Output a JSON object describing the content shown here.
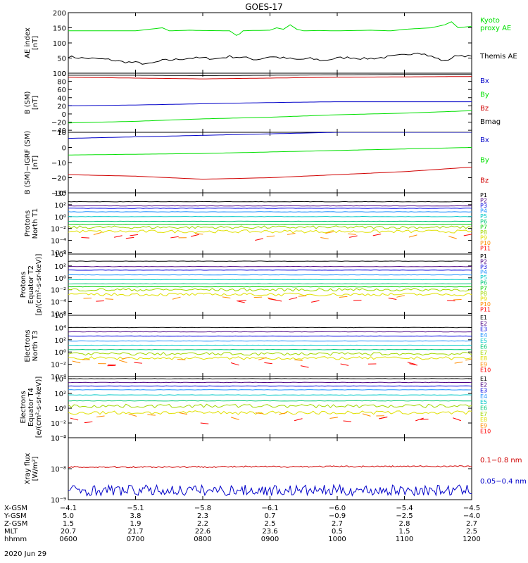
{
  "title": "GOES-17",
  "date_label": "2020 Jun 29",
  "colors": {
    "black": "#000000",
    "green": "#00e000",
    "red": "#d00000",
    "blue": "#0000c8",
    "p_colors": [
      "#000000",
      "#4b0082",
      "#0000e0",
      "#1e90ff",
      "#00c8c8",
      "#00c878",
      "#00d000",
      "#a0d800",
      "#e0e000",
      "#ff8c00",
      "#ff0000"
    ],
    "e_colors": [
      "#000000",
      "#4b0082",
      "#0000e0",
      "#1e90ff",
      "#00c8c8",
      "#00c878",
      "#a0d800",
      "#e0e000",
      "#ff8c00",
      "#ff0000"
    ]
  },
  "chart_data": [
    {
      "type": "line",
      "id": "ae",
      "ylabel": "AE index\n[nT]",
      "ylim": [
        0,
        200
      ],
      "yticks": [
        {
          "v": 0,
          "t": "0"
        },
        {
          "v": 50,
          "t": "50"
        },
        {
          "v": 100,
          "t": "100"
        },
        {
          "v": 150,
          "t": "150"
        },
        {
          "v": 200,
          "t": "200"
        }
      ],
      "series": [
        {
          "name": "Kyoto\nproxy AE",
          "color": "#00e000",
          "x": [
            6.0,
            7.0,
            7.2,
            7.4,
            7.5,
            7.8,
            8.0,
            8.4,
            8.5,
            8.55,
            8.6,
            8.7,
            9.0,
            9.1,
            9.2,
            9.3,
            9.4,
            9.5,
            9.7,
            10.0,
            10.5,
            10.8,
            11.0,
            11.4,
            11.5,
            11.6,
            11.7,
            11.8,
            12.0
          ],
          "y": [
            140,
            140,
            145,
            150,
            140,
            142,
            141,
            140,
            125,
            130,
            140,
            141,
            142,
            150,
            145,
            160,
            145,
            140,
            141,
            140,
            142,
            140,
            145,
            150,
            155,
            160,
            170,
            150,
            155
          ]
        },
        {
          "name": "Themis AE",
          "color": "#000000",
          "x": [
            6.0,
            6.2,
            6.4,
            6.6,
            6.8,
            7.0,
            7.2,
            7.4,
            7.6,
            7.8,
            8.0,
            8.2,
            8.4,
            8.6,
            8.8,
            9.0,
            9.2,
            9.4,
            9.6,
            9.8,
            10.0,
            10.2,
            10.4,
            10.6,
            10.8,
            11.0,
            11.2,
            11.4,
            11.6,
            11.8,
            12.0
          ],
          "y": [
            55,
            50,
            48,
            45,
            38,
            35,
            30,
            42,
            45,
            50,
            50,
            48,
            55,
            52,
            45,
            55,
            50,
            45,
            48,
            42,
            50,
            52,
            48,
            50,
            55,
            60,
            70,
            55,
            40,
            60,
            55
          ]
        }
      ]
    },
    {
      "type": "line",
      "id": "bsm",
      "ylabel": "B (SM)\n[nT]",
      "ylim": [
        -45,
        100
      ],
      "yticks": [
        {
          "v": -40,
          "t": "−40"
        },
        {
          "v": -20,
          "t": "−20"
        },
        {
          "v": 0,
          "t": "0"
        },
        {
          "v": 20,
          "t": "20"
        },
        {
          "v": 40,
          "t": "40"
        },
        {
          "v": 60,
          "t": "60"
        },
        {
          "v": 80,
          "t": "80"
        },
        {
          "v": 100,
          "t": "100"
        }
      ],
      "series": [
        {
          "name": "Bx",
          "color": "#0000c8",
          "x": [
            6,
            7,
            8,
            9,
            10,
            11,
            12
          ],
          "y": [
            20,
            22,
            25,
            28,
            30,
            30,
            30
          ]
        },
        {
          "name": "By",
          "color": "#00e000",
          "x": [
            6,
            7,
            8,
            9,
            10,
            11,
            12
          ],
          "y": [
            -22,
            -18,
            -12,
            -8,
            -2,
            2,
            8
          ]
        },
        {
          "name": "Bz",
          "color": "#d00000",
          "x": [
            6,
            7,
            8,
            9,
            10,
            11,
            12
          ],
          "y": [
            90,
            88,
            86,
            88,
            90,
            91,
            92
          ]
        },
        {
          "name": "Bmag",
          "color": "#000000",
          "x": [
            6,
            7,
            8,
            9,
            10,
            11,
            12
          ],
          "y": [
            95,
            95,
            94,
            95,
            96,
            97,
            97
          ]
        }
      ]
    },
    {
      "type": "line",
      "id": "bigrf",
      "ylabel": "B (SM)−IGRF (SM)\n[nT]",
      "ylim": [
        -30,
        10
      ],
      "yticks": [
        {
          "v": -30,
          "t": "−30"
        },
        {
          "v": -20,
          "t": "−20"
        },
        {
          "v": -10,
          "t": "−10"
        },
        {
          "v": 0,
          "t": "0"
        },
        {
          "v": 10,
          "t": "10"
        }
      ],
      "series": [
        {
          "name": "Bx",
          "color": "#0000c8",
          "x": [
            6,
            7,
            8,
            9,
            10,
            11,
            12
          ],
          "y": [
            6,
            7,
            8,
            9,
            10,
            10,
            10
          ]
        },
        {
          "name": "By",
          "color": "#00e000",
          "x": [
            6,
            7,
            8,
            9,
            10,
            11,
            12
          ],
          "y": [
            -5,
            -4.5,
            -4,
            -3,
            -2,
            -1,
            0
          ]
        },
        {
          "name": "Bz",
          "color": "#d00000",
          "x": [
            6,
            7,
            8,
            9,
            10,
            11,
            12
          ],
          "y": [
            -18,
            -19,
            -21,
            -20,
            -18,
            -16,
            -13
          ]
        }
      ]
    },
    {
      "type": "line",
      "id": "pn",
      "log": true,
      "ylabel": "Protons\nNorth T1",
      "ylim": [
        -6.3,
        4
      ],
      "yticks": [
        {
          "v": 4,
          "t": "10⁴"
        },
        {
          "v": 2,
          "t": "10²"
        },
        {
          "v": 0,
          "t": "10⁰"
        },
        {
          "v": -2,
          "t": "10⁻²"
        },
        {
          "v": -4,
          "t": "10⁻⁴"
        },
        {
          "v": -6,
          "t": "10⁻⁶"
        }
      ],
      "legend": [
        "P1",
        "P2",
        "P3",
        "P4",
        "P5",
        "P6",
        "P7",
        "P8",
        "P9",
        "P10",
        "P11"
      ],
      "channels": [
        2.5,
        1.8,
        1.4,
        0.8,
        0.0,
        -0.8,
        -1.3,
        -1.8,
        -2.5,
        -3.2,
        -3.6
      ]
    },
    {
      "type": "line",
      "id": "pe",
      "log": true,
      "ylabel": "Protons\nEquator T2\n[p/(cm²-s-sr-keV)]",
      "ylim": [
        -6.3,
        4
      ],
      "yticks": [
        {
          "v": 4,
          "t": "10⁴"
        },
        {
          "v": 2,
          "t": "10²"
        },
        {
          "v": 0,
          "t": "10⁰"
        },
        {
          "v": -2,
          "t": "10⁻²"
        },
        {
          "v": -4,
          "t": "10⁻⁴"
        },
        {
          "v": -6,
          "t": "10⁻⁶"
        }
      ],
      "legend": [
        "P1",
        "P2",
        "P3",
        "P4",
        "P5",
        "P6",
        "P7",
        "P8",
        "P9",
        "P10",
        "P11"
      ],
      "channels": [
        2.8,
        1.9,
        1.3,
        0.5,
        -0.3,
        -1.0,
        -1.5,
        -2.0,
        -2.8,
        -3.3,
        -3.7
      ]
    },
    {
      "type": "line",
      "id": "en",
      "log": true,
      "ylabel": "Electrons\nNorth T3",
      "ylim": [
        -4,
        6
      ],
      "yticks": [
        {
          "v": 6,
          "t": "10⁶"
        },
        {
          "v": 4,
          "t": "10⁴"
        },
        {
          "v": 2,
          "t": "10²"
        },
        {
          "v": 0,
          "t": "10⁰"
        },
        {
          "v": -2,
          "t": "10⁻²"
        },
        {
          "v": -4,
          "t": "10⁻⁴"
        }
      ],
      "legend": [
        "E1",
        "E2",
        "E3",
        "E4",
        "E5",
        "E6",
        "E7",
        "E8",
        "E9",
        "E10"
      ],
      "channels": [
        4.0,
        3.3,
        2.6,
        1.8,
        1.1,
        0.4,
        -0.3,
        -1.0,
        -1.5,
        -1.9
      ]
    },
    {
      "type": "line",
      "id": "ee",
      "log": true,
      "ylabel": "Electrons\nEquator T4\n[e/(cm²-s-sr-keV)]",
      "ylim": [
        -4,
        4.3
      ],
      "yticks": [
        {
          "v": 4,
          "t": "10⁴"
        },
        {
          "v": 2,
          "t": "10²"
        },
        {
          "v": 0,
          "t": "10⁰"
        },
        {
          "v": -2,
          "t": "10⁻²"
        },
        {
          "v": -4,
          "t": "10⁻⁴"
        }
      ],
      "legend": [
        "E1",
        "E2",
        "E3",
        "E4",
        "E5",
        "E6",
        "E7",
        "E8",
        "E9",
        "E10"
      ],
      "channels": [
        4.0,
        3.5,
        3.0,
        2.5,
        1.8,
        1.0,
        0.3,
        -0.6,
        -1.0,
        -1.6
      ]
    },
    {
      "type": "line",
      "id": "xray",
      "log": true,
      "ylabel": "Xray flux\n[W/m²]",
      "ylim": [
        -9,
        -7
      ],
      "yticks": [
        {
          "v": -7,
          "t": "10⁻⁷"
        },
        {
          "v": -8,
          "t": "10⁻⁸"
        },
        {
          "v": -9,
          "t": "10⁻⁹"
        }
      ],
      "series": [
        {
          "name": "0.1−0.8 nm",
          "color": "#d00000",
          "level": -7.95
        },
        {
          "name": "0.05−0.4 nm",
          "color": "#0000c8",
          "level": -8.7
        }
      ]
    }
  ],
  "xaxis": {
    "range": [
      6,
      12
    ],
    "ticks": [
      6,
      7,
      8,
      9,
      10,
      11,
      12
    ],
    "rows": [
      {
        "label": "X-GSM",
        "values": [
          "−4.1",
          "−5.1",
          "−5.8",
          "−6.1",
          "−6.0",
          "−5.4",
          "−4.5"
        ]
      },
      {
        "label": "Y-GSM",
        "values": [
          "5.0",
          "3.8",
          "2.3",
          "0.7",
          "−0.9",
          "−2.5",
          "−4.0"
        ]
      },
      {
        "label": "Z-GSM",
        "values": [
          "1.5",
          "1.9",
          "2.2",
          "2.5",
          "2.7",
          "2.8",
          "2.7"
        ]
      },
      {
        "label": "MLT",
        "values": [
          "20.7",
          "21.7",
          "22.6",
          "23.6",
          "0.5",
          "1.5",
          "2.5"
        ]
      },
      {
        "label": "hhmm",
        "values": [
          "0600",
          "0700",
          "0800",
          "0900",
          "1000",
          "1100",
          "1200"
        ]
      }
    ]
  }
}
